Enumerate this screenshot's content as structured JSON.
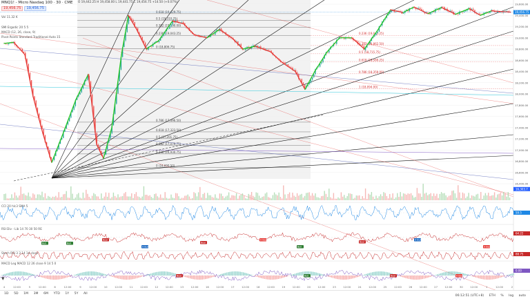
{
  "header": {
    "title": "MNQ1! - Micro Nasdaq 100 · 30 · CME",
    "sell": "19,456.75",
    "buy": "19,456.75",
    "ohlc_line": "O 19,442.25  H 19,458.00  L 19,441.75  C 19,456.75  +14.50 (+0.07%)",
    "vol_line": "Vol  11.32 K",
    "indicator_lines": [
      "SMI  Ergodic  20  5  5",
      "MACD  (12, 26, close, 9)",
      "Pivot Points Standard  Traditional  Auto  15"
    ]
  },
  "price_axis": {
    "ticks": [
      "19,600.00",
      "19,400.00",
      "19,200.00",
      "19,000.00",
      "18,800.00",
      "18,600.00",
      "18,400.00",
      "18,200.00",
      "18,000.00",
      "17,800.00",
      "17,600.00",
      "17,400.00",
      "17,200.00",
      "17,000.00",
      "16,800.00",
      "16,600.00",
      "16,400.00"
    ],
    "current_label": "19,456.75",
    "current_color": "#1e88e5",
    "secondary_label": "16,303.7",
    "secondary_color": "#2962ff"
  },
  "fib_levels": [
    {
      "label": "0.618 (19,429.75)"
    },
    {
      "label": "0.5 (19,310.25)"
    },
    {
      "label": "0.382 (19,190.00)"
    },
    {
      "label": "0.236 (19,043.25)"
    },
    {
      "label": "0 (18,806.75)"
    },
    {
      "label": "0.786 (17,496.50)"
    },
    {
      "label": "0.618 (17,323.50)"
    },
    {
      "label": "0.5 (17,201.75)"
    },
    {
      "label": "0.382 (17,079.75)"
    },
    {
      "label": "0.236 (16,930.75)"
    },
    {
      "label": "0 (16,690.50)"
    }
  ],
  "fib_levels_right": [
    {
      "label": "0.236 (19,043.25)"
    },
    {
      "label": "0.382 (18,862.50)"
    },
    {
      "label": "0.5 (18,715.75)"
    },
    {
      "label": "0.618 (18,569.25)"
    },
    {
      "label": "0.786 (18,359.00)"
    },
    {
      "label": "1 (18,094.00)"
    }
  ],
  "panes": {
    "cci": {
      "label": "CCI  20  hlc3  SMA  5",
      "value": "59.5"
    },
    "rsi": {
      "label": "RSI Div - Lib  14  70  30  50  RE",
      "value": "64.22"
    },
    "stoch": {
      "label": "Stoch RSI  3  3  14  14  close",
      "value": "88.75"
    },
    "macd": {
      "label": "MACD Leg  MACD  12  26  close  9  14  5  0",
      "value": "0.00"
    }
  },
  "x_axis": {
    "ticks": [
      "4",
      "12:00",
      "5",
      "12:00",
      "6",
      "12:00",
      "9",
      "12:00",
      "10",
      "12:00",
      "11",
      "12:00",
      "12",
      "12:00",
      "13",
      "12:00",
      "16",
      "12:00",
      "17",
      "12:00",
      "18",
      "12:00",
      "19",
      "12:00",
      "20",
      "12:00",
      "23",
      "12:00",
      "24",
      "12:00",
      "25",
      "12:00",
      "26",
      "12:00",
      "27",
      "12:00",
      "30",
      "12:00",
      "1",
      "12:00",
      "2"
    ]
  },
  "bottom_bar": {
    "ranges": [
      "1D",
      "5D",
      "1M",
      "3M",
      "6M",
      "YTD",
      "1Y",
      "5Y",
      "All"
    ],
    "time": "06:12:51 (UTC+8)",
    "extra": [
      "ETH",
      "%",
      "log",
      "auto"
    ]
  },
  "badges": [
    {
      "text": "Bull",
      "color": "#2e7d32"
    },
    {
      "text": "Bear",
      "color": "#c62828"
    },
    {
      "text": "H Bull",
      "color": "#1565c0"
    },
    {
      "text": "H Bear",
      "color": "#e53935"
    }
  ],
  "colors": {
    "up": "#26a69a",
    "down": "#ef5350",
    "accent": "#1e88e5",
    "wave_green": "#22c522",
    "wave_red": "#e53935"
  }
}
